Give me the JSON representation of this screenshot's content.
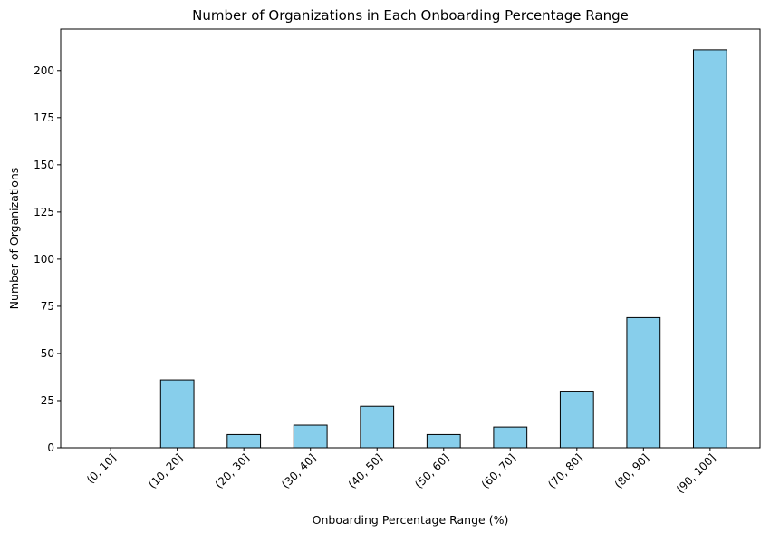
{
  "chart_data": {
    "type": "bar",
    "title": "Number of Organizations in Each Onboarding Percentage Range",
    "xlabel": "Onboarding Percentage Range (%)",
    "ylabel": "Number of Organizations",
    "categories": [
      "(0, 10]",
      "(10, 20]",
      "(20, 30]",
      "(30, 40]",
      "(40, 50]",
      "(50, 60]",
      "(60, 70]",
      "(70, 80]",
      "(80, 90]",
      "(90, 100]"
    ],
    "values": [
      0,
      36,
      7,
      12,
      22,
      7,
      11,
      30,
      69,
      211
    ],
    "ylim": [
      0,
      222
    ],
    "yticks": [
      0,
      25,
      50,
      75,
      100,
      125,
      150,
      175,
      200
    ],
    "bar_color": "#87CEEB",
    "edge_color": "#000000",
    "grid": false,
    "legend": "none",
    "x_tick_rotation": 45
  }
}
